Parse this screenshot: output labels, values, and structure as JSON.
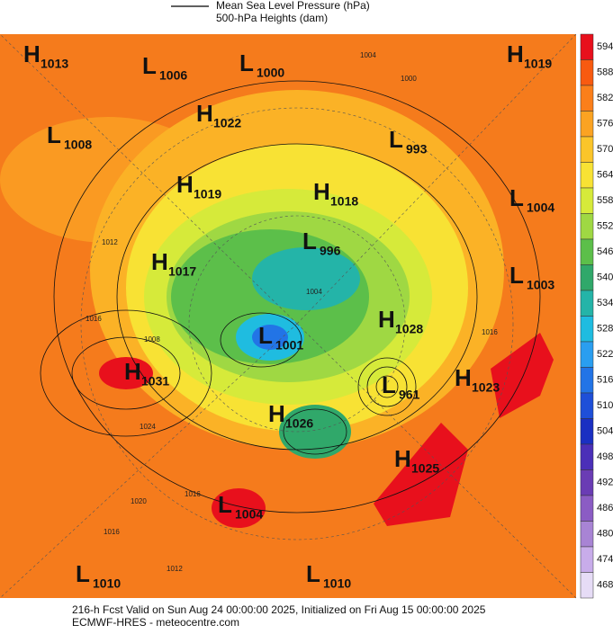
{
  "legend": [
    "Mean Sea Level Pressure (hPa)",
    "500-hPa Heights (dam)"
  ],
  "pressure_centers": [
    {
      "type": "H",
      "value": 1013
    },
    {
      "type": "L",
      "value": 1006
    },
    {
      "type": "L",
      "value": 1000
    },
    {
      "type": "H",
      "value": 1019
    },
    {
      "type": "H",
      "value": 1022
    },
    {
      "type": "L",
      "value": 1008
    },
    {
      "type": "L",
      "value": 993
    },
    {
      "type": "H",
      "value": 1019
    },
    {
      "type": "H",
      "value": 1018
    },
    {
      "type": "L",
      "value": 1004
    },
    {
      "type": "L",
      "value": 996
    },
    {
      "type": "H",
      "value": 1017
    },
    {
      "type": "L",
      "value": 1003
    },
    {
      "type": "H",
      "value": 1028
    },
    {
      "type": "L",
      "value": 1001
    },
    {
      "type": "H",
      "value": 1031
    },
    {
      "type": "H",
      "value": 1023
    },
    {
      "type": "L",
      "value": 961
    },
    {
      "type": "H",
      "value": 1026
    },
    {
      "type": "H",
      "value": 1025
    },
    {
      "type": "L",
      "value": 1004
    },
    {
      "type": "L",
      "value": 1010
    },
    {
      "type": "L",
      "value": 1010
    }
  ],
  "contour_labels": [
    1004,
    1000,
    1012,
    1016,
    1008,
    1004,
    1024,
    1020,
    1016,
    1016,
    1012,
    1016
  ],
  "colorbar": {
    "levels": [
      594,
      588,
      582,
      576,
      570,
      564,
      558,
      552,
      546,
      540,
      534,
      528,
      522,
      516,
      510,
      504,
      498,
      492,
      486,
      480,
      474,
      468
    ],
    "colors": [
      "#e8101c",
      "#f85a10",
      "#fb7f1a",
      "#fba322",
      "#fbc52a",
      "#f8e234",
      "#d6ea3a",
      "#9fd843",
      "#5cbf4a",
      "#30a86a",
      "#24b4a8",
      "#1fbce0",
      "#2a9ef0",
      "#2274e6",
      "#1e4fd8",
      "#1a2fc2",
      "#4b2fb8",
      "#6a3cb4",
      "#8b5cc4",
      "#a884d4",
      "#c8acea",
      "#e6dcf6"
    ]
  },
  "footer": [
    "216-h Fcst Valid on Sun Aug 24 00:00:00 2025, Initialized on Fri Aug 15 00:00:00 2025",
    "ECMWF-HRES  - meteocentre.com"
  ]
}
